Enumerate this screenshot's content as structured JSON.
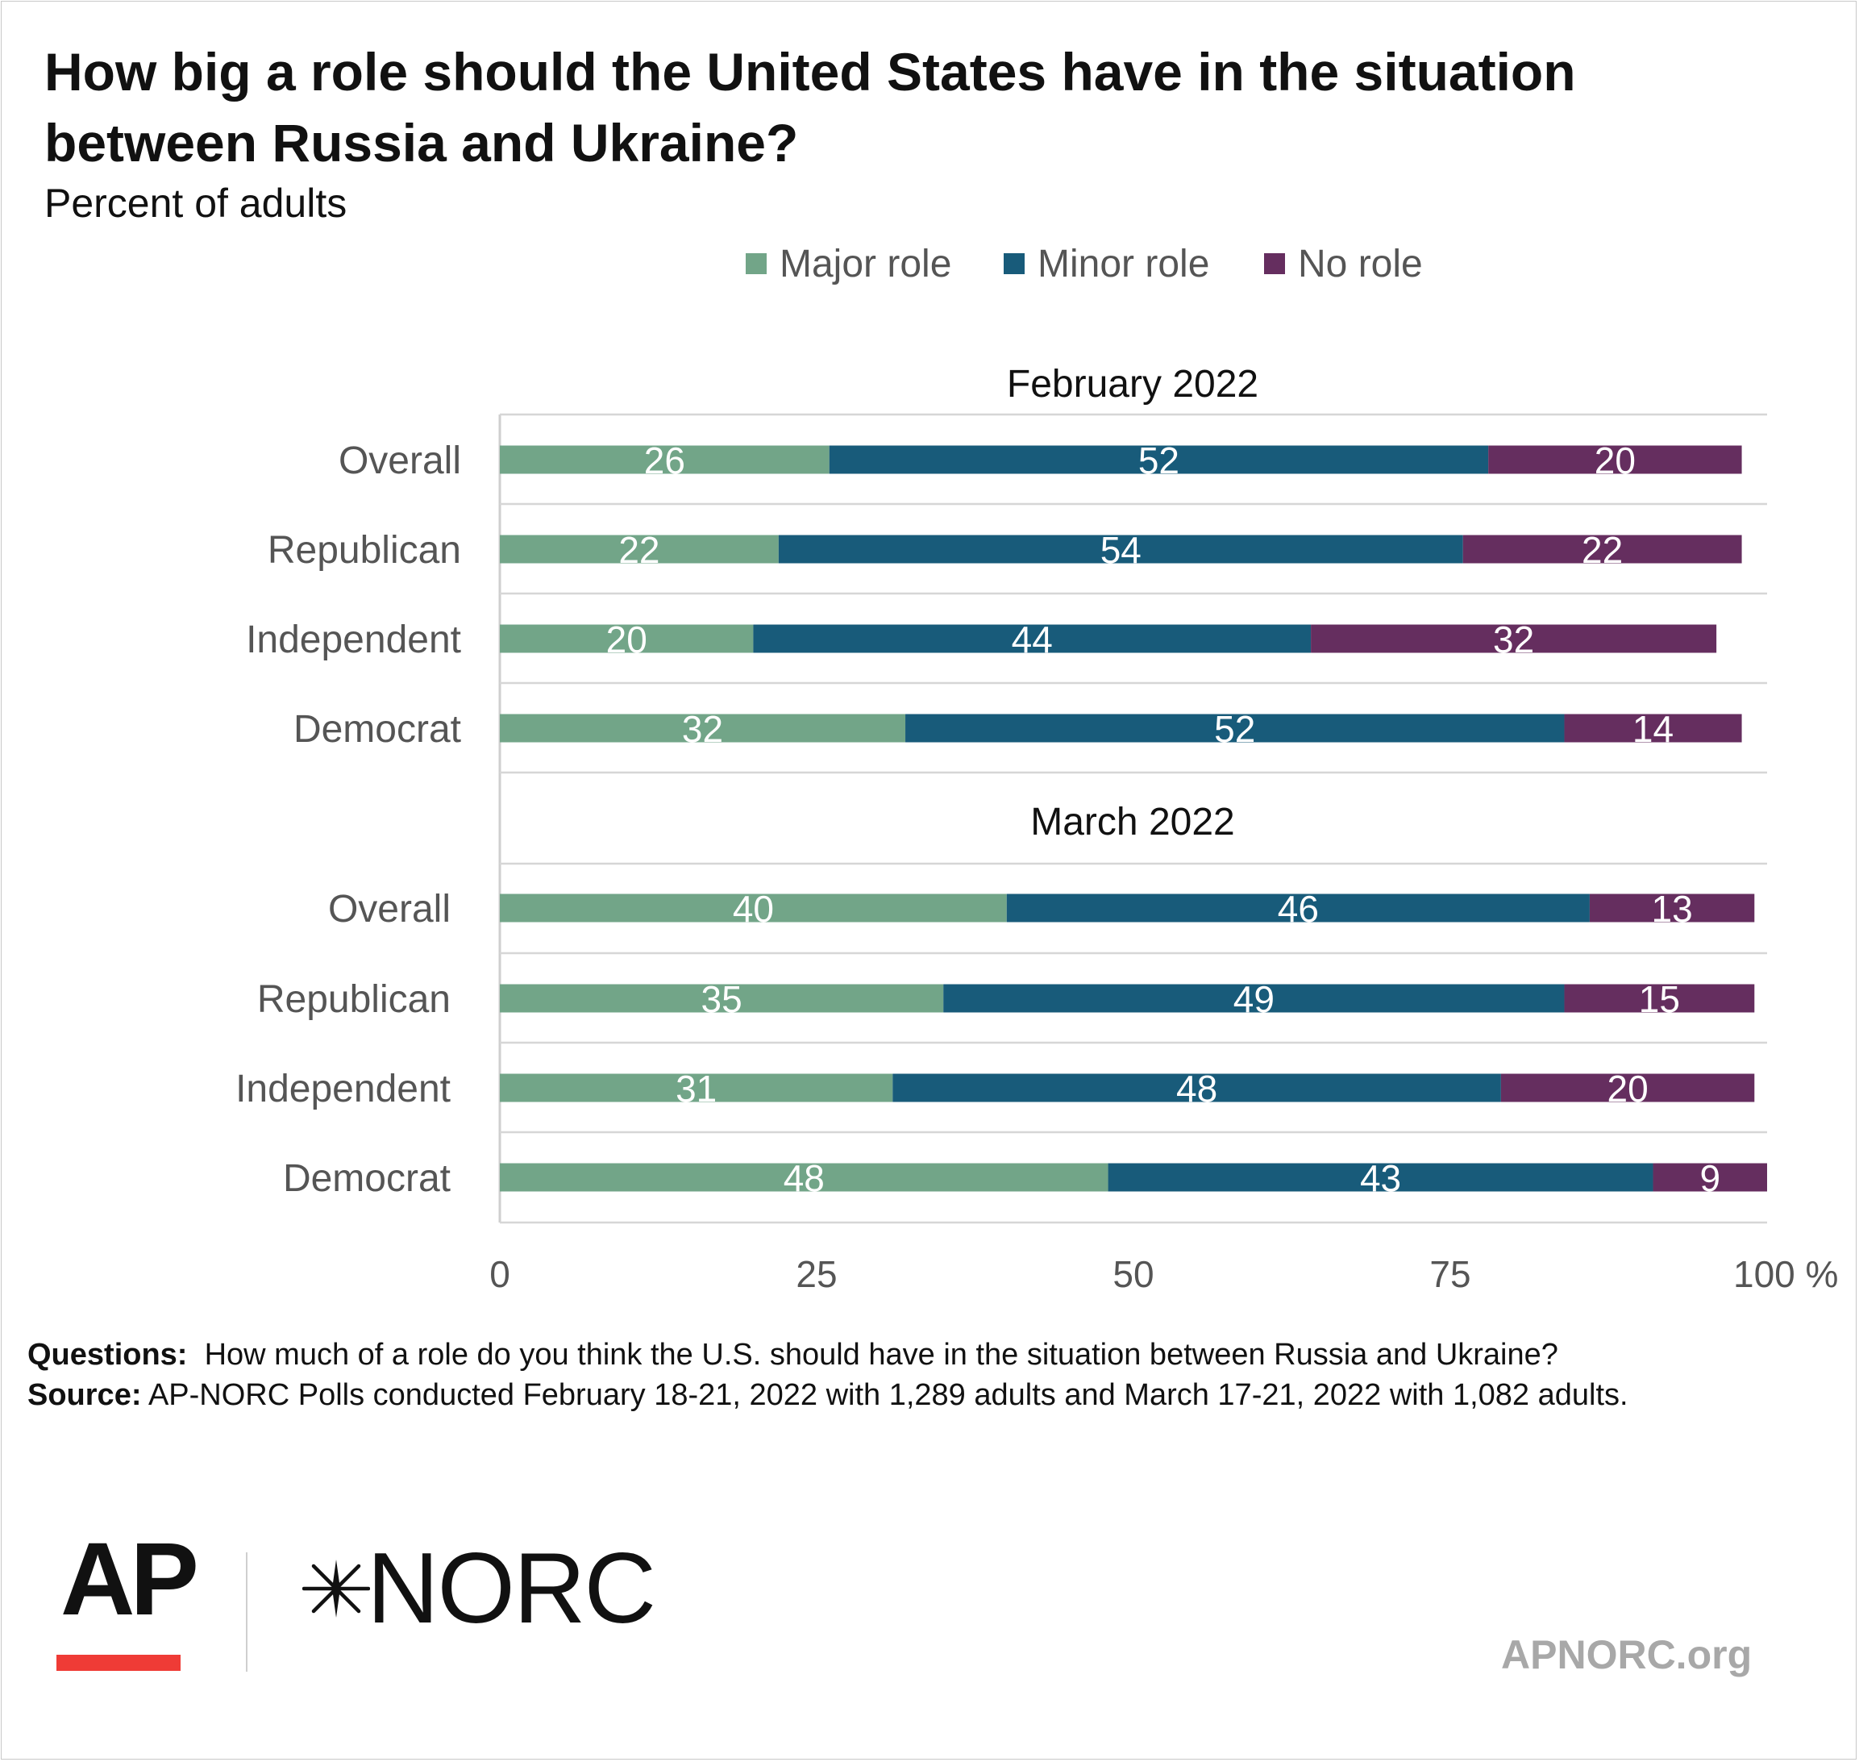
{
  "chart_data": {
    "type": "bar",
    "orientation": "horizontal",
    "stacked": true,
    "title": "How big a role should the United States have in the situation between Russia and Ukraine?",
    "subtitle": "Percent of adults",
    "legend": {
      "placement": "top",
      "entries": [
        "Major role",
        "Minor role",
        "No role"
      ]
    },
    "colors": {
      "Major role": "#72a588",
      "Minor role": "#185b7a",
      "No role": "#652e5f"
    },
    "xlim": [
      0,
      100
    ],
    "x_ticks": [
      "0",
      "25",
      "50",
      "75",
      "100 %"
    ],
    "x_tick_values": [
      0,
      25,
      50,
      75,
      100
    ],
    "grid": "horizontal separators",
    "groups": [
      {
        "name": "February 2022",
        "categories": [
          "Overall",
          "Republican",
          "Independent",
          "Democrat"
        ],
        "series": [
          {
            "name": "Major role",
            "values": [
              26,
              22,
              20,
              32
            ]
          },
          {
            "name": "Minor role",
            "values": [
              52,
              54,
              44,
              52
            ]
          },
          {
            "name": "No role",
            "values": [
              20,
              22,
              32,
              14
            ]
          }
        ]
      },
      {
        "name": "March 2022",
        "categories": [
          "Overall",
          "Republican",
          "Independent",
          "Democrat"
        ],
        "series": [
          {
            "name": "Major role",
            "values": [
              40,
              35,
              31,
              48
            ]
          },
          {
            "name": "Minor role",
            "values": [
              46,
              49,
              48,
              43
            ]
          },
          {
            "name": "No role",
            "values": [
              13,
              15,
              20,
              9
            ]
          }
        ]
      }
    ]
  },
  "notes": {
    "questions_label": "Questions:",
    "questions_text": "How much of a role do you think the U.S. should have in the situation between Russia and Ukraine?",
    "source_label": "Source:",
    "source_text": "AP-NORC Polls conducted February 18-21, 2022 with 1,289 adults and March 17-21, 2022 with 1,082 adults."
  },
  "branding": {
    "ap_logo": "AP",
    "ap_accent_color": "#ef3b36",
    "norc_logo_icon": "star-burst-icon",
    "norc_logo": "NORC",
    "site": "APNORC.org"
  }
}
